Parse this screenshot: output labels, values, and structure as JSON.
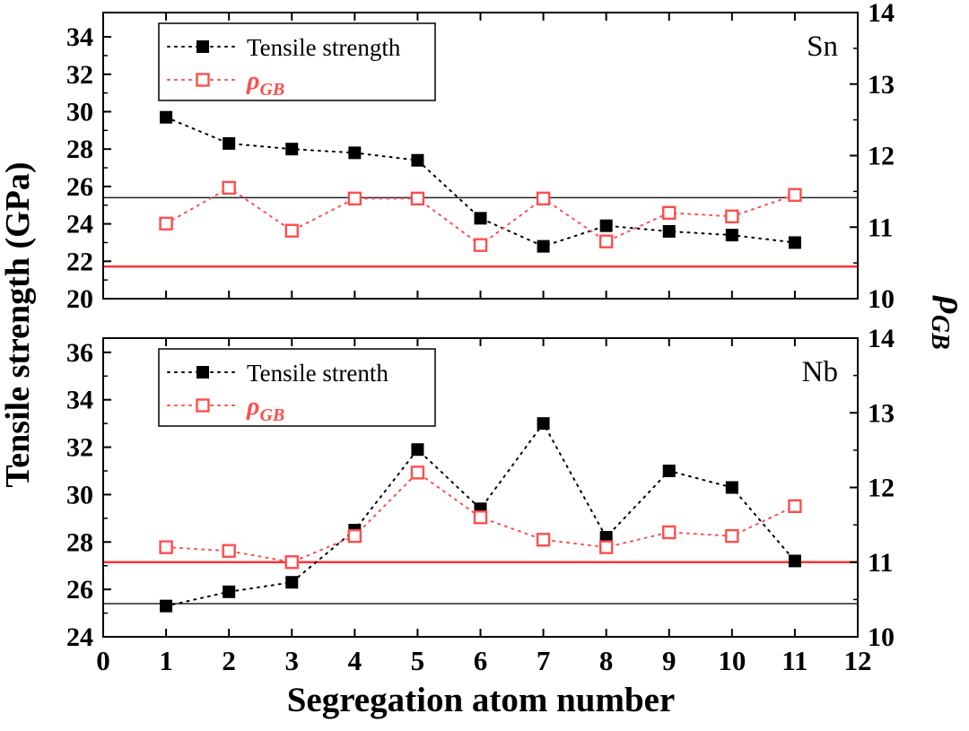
{
  "figure": {
    "x_label": "Segregation atom number",
    "left_axis_label": "Tensile strength (GPa)",
    "right_axis_label_symbol": "ρ",
    "right_axis_label_subscript": "GB"
  },
  "colors": {
    "tensile": "#000000",
    "rho": "#ff4d4d",
    "ref_red": "#ff3333",
    "ref_black": "#222222"
  },
  "chart_data": {
    "type": "line",
    "x_range": [
      0,
      12
    ],
    "x_ticks": [
      0,
      1,
      2,
      3,
      4,
      5,
      6,
      7,
      8,
      9,
      10,
      11,
      12
    ],
    "x": [
      1,
      2,
      3,
      4,
      5,
      6,
      7,
      8,
      9,
      10,
      11
    ],
    "panels": [
      {
        "label": "Sn",
        "legend_tensile": "Tensile strength",
        "legend_rho_symbol": "ρ",
        "legend_rho_subscript": "GB",
        "left_ticks": [
          20,
          22,
          24,
          26,
          28,
          30,
          32,
          34
        ],
        "left_range": [
          20,
          35.3
        ],
        "right_ticks": [
          10,
          11,
          12,
          13,
          14
        ],
        "right_range": [
          10,
          14
        ],
        "series": [
          {
            "key": "tensile-strength",
            "name": "Tensile strength",
            "axis": "left",
            "marker": "filled-square",
            "values": [
              29.7,
              28.3,
              28.0,
              27.8,
              27.4,
              24.3,
              22.8,
              23.9,
              23.6,
              23.4,
              23.0
            ]
          },
          {
            "key": "rho-gb",
            "name": "ρ_GB",
            "axis": "right",
            "marker": "open-square",
            "values": [
              11.05,
              11.55,
              10.95,
              11.4,
              11.4,
              10.75,
              11.4,
              10.8,
              11.2,
              11.15,
              11.45
            ]
          }
        ],
        "ref_lines": [
          {
            "axis": "left",
            "value": 25.4,
            "color_key": "ref_black",
            "width": 1.5
          },
          {
            "axis": "right",
            "value": 10.45,
            "color_key": "ref_red",
            "width": 2.5
          }
        ]
      },
      {
        "label": "Nb",
        "legend_tensile": "Tensile strenth",
        "legend_rho_symbol": "ρ",
        "legend_rho_subscript": "GB",
        "left_ticks": [
          24,
          26,
          28,
          30,
          32,
          34,
          36
        ],
        "left_range": [
          24,
          36.6
        ],
        "right_ticks": [
          10,
          11,
          12,
          13,
          14
        ],
        "right_range": [
          10,
          14
        ],
        "series": [
          {
            "key": "tensile-strength",
            "name": "Tensile strenth",
            "axis": "left",
            "marker": "filled-square",
            "values": [
              25.3,
              25.9,
              26.3,
              28.5,
              31.9,
              29.4,
              33.0,
              28.2,
              31.0,
              30.3,
              27.2
            ]
          },
          {
            "key": "rho-gb",
            "name": "ρ_GB",
            "axis": "right",
            "marker": "open-square",
            "values": [
              11.2,
              11.15,
              11.0,
              11.35,
              12.2,
              11.6,
              11.3,
              11.2,
              11.4,
              11.35,
              11.75
            ]
          }
        ],
        "ref_lines": [
          {
            "axis": "left",
            "value": 25.4,
            "color_key": "ref_black",
            "width": 1.5
          },
          {
            "axis": "right",
            "value": 11.0,
            "color_key": "ref_red",
            "width": 2.5
          }
        ]
      }
    ]
  }
}
